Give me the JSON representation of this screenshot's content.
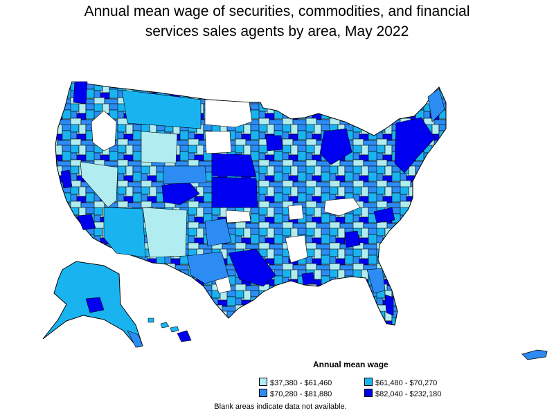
{
  "title": {
    "line1": "Annual mean wage of securities, commodities, and financial",
    "line2": "services sales agents by area, May 2022"
  },
  "legend": {
    "title": "Annual mean wage",
    "items": [
      {
        "label": "$37,380 - $61,460",
        "color": "#b0ecf0"
      },
      {
        "label": "$61,480 - $70,270",
        "color": "#19b4f0"
      },
      {
        "label": "$70,280 - $81,880",
        "color": "#2c8cf4"
      },
      {
        "label": "$82,040 - $232,180",
        "color": "#0000f0"
      }
    ]
  },
  "note": "Blank areas indicate data not available.",
  "colors": {
    "outline": "#000000",
    "no_data": "#ffffff"
  }
}
